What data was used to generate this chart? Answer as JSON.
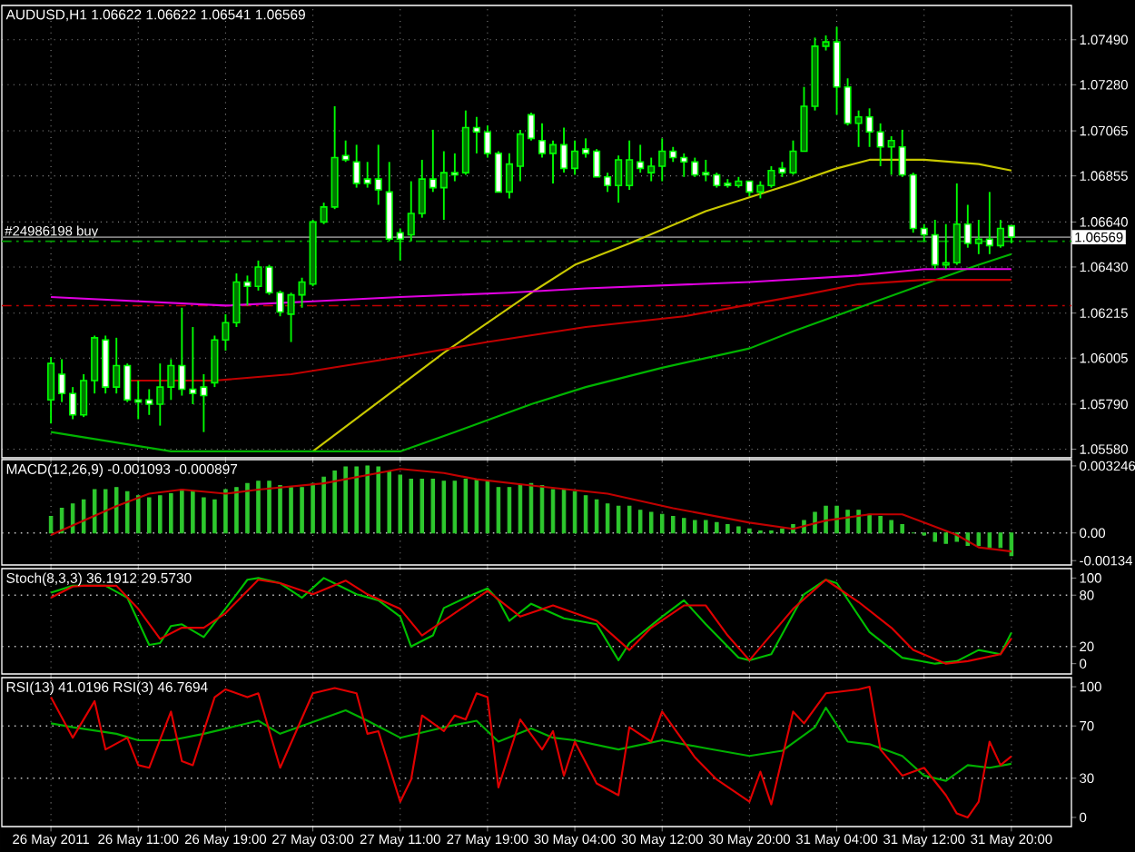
{
  "chart_data": [
    {
      "type": "candlestick",
      "title": "AUDUSD,H1 1.06622 1.06622 1.06541 1.06569",
      "categories": [
        null,
        null,
        null,
        null,
        null,
        null,
        null,
        null,
        null,
        null,
        null,
        null,
        null,
        null,
        null,
        null,
        null,
        null,
        null,
        null,
        null,
        null,
        null,
        null,
        null,
        null,
        null,
        null,
        null,
        null,
        null,
        null,
        null,
        null,
        null,
        null,
        null,
        null,
        null,
        null,
        null,
        null,
        null,
        null,
        null,
        null,
        null,
        null,
        null,
        null,
        null,
        null,
        null,
        null,
        null,
        null,
        null,
        null,
        null,
        null,
        null,
        null,
        null,
        null,
        null,
        null,
        null,
        null,
        null,
        null,
        null,
        null,
        null,
        null,
        null,
        null,
        null,
        null,
        null,
        null,
        null,
        null,
        null,
        null,
        null,
        null,
        null,
        null,
        null,
        null,
        null,
        null,
        null,
        null,
        null,
        null,
        null,
        null
      ],
      "ohlc": [
        null,
        null,
        null,
        null,
        [
          1.0581,
          1.0601,
          1.057,
          1.0598
        ],
        [
          1.0593,
          1.06,
          1.058,
          1.0584
        ],
        [
          1.0584,
          1.0587,
          1.0572,
          1.0574
        ],
        [
          1.0574,
          1.0593,
          1.0573,
          1.059
        ],
        [
          1.059,
          1.0611,
          1.0584,
          1.061
        ],
        [
          1.0609,
          1.0611,
          1.0584,
          1.0587
        ],
        [
          1.0587,
          1.061,
          1.0584,
          1.0597
        ],
        [
          1.0597,
          1.0598,
          1.058,
          1.0581
        ],
        [
          1.0581,
          1.059,
          1.0572,
          1.058
        ],
        [
          1.0581,
          1.0586,
          1.0574,
          1.0579
        ],
        [
          1.0579,
          1.0598,
          1.0569,
          1.0587
        ],
        [
          1.0587,
          1.06,
          1.0581,
          1.0597
        ],
        [
          1.0597,
          1.0624,
          1.0583,
          1.0586
        ],
        [
          1.0586,
          1.0615,
          1.0579,
          1.0584
        ],
        [
          1.0587,
          1.0593,
          1.0566,
          1.0583
        ],
        [
          1.0589,
          1.0611,
          1.0587,
          1.0609
        ],
        [
          1.0609,
          1.0621,
          1.0604,
          1.0617
        ],
        [
          1.0617,
          1.064,
          1.0615,
          1.0636
        ],
        [
          1.0636,
          1.0639,
          1.0625,
          1.0634
        ],
        [
          1.0634,
          1.0646,
          1.0632,
          1.0643
        ],
        [
          1.0643,
          1.0644,
          1.063,
          1.0631
        ],
        [
          1.0631,
          1.0632,
          1.062,
          1.0622
        ],
        [
          1.0621,
          1.0631,
          1.0608,
          1.063
        ],
        [
          1.063,
          1.0638,
          1.0624,
          1.0636
        ],
        [
          1.0635,
          1.0665,
          1.0634,
          1.0664
        ],
        [
          1.0664,
          1.0673,
          1.0663,
          1.0671
        ],
        [
          1.0671,
          1.0718,
          1.067,
          1.0694
        ],
        [
          1.0695,
          1.0702,
          1.0692,
          1.0693
        ],
        [
          1.0692,
          1.07,
          1.068,
          1.0682
        ],
        [
          1.0684,
          1.0692,
          1.068,
          1.0682
        ],
        [
          1.0684,
          1.07,
          1.0672,
          1.0679
        ],
        [
          1.0678,
          1.0692,
          1.0655,
          1.0656
        ],
        [
          1.0659,
          1.0661,
          1.0646,
          1.0656
        ],
        [
          1.0658,
          1.0683,
          1.0655,
          1.0668
        ],
        [
          1.0668,
          1.0693,
          1.0666,
          1.0684
        ],
        [
          1.0684,
          1.0707,
          1.0678,
          1.068
        ],
        [
          1.068,
          1.0697,
          1.0665,
          1.0687
        ],
        [
          1.0687,
          1.0696,
          1.0683,
          1.0686
        ],
        [
          1.0687,
          1.0716,
          1.0686,
          1.0708
        ],
        [
          1.0708,
          1.0713,
          1.0696,
          1.0706
        ],
        [
          1.0706,
          1.0709,
          1.0694,
          1.0696
        ],
        [
          1.0696,
          1.0697,
          1.0678,
          1.0678
        ],
        [
          1.0678,
          1.0696,
          1.0675,
          1.0691
        ],
        [
          1.069,
          1.0707,
          1.0683,
          1.0705
        ],
        [
          1.0714,
          1.0715,
          1.0702,
          1.0703
        ],
        [
          1.0702,
          1.071,
          1.0694,
          1.0696
        ],
        [
          1.0696,
          1.0702,
          1.0682,
          1.07
        ],
        [
          1.07,
          1.0708,
          1.0687,
          1.0689
        ],
        [
          1.0689,
          1.0702,
          1.0686,
          1.0697
        ],
        [
          1.0698,
          1.0703,
          1.0694,
          1.0696
        ],
        [
          1.0697,
          1.0698,
          1.0685,
          1.0685
        ],
        [
          1.0685,
          1.0687,
          1.0678,
          1.0681
        ],
        [
          1.0681,
          1.0695,
          1.0673,
          1.0693
        ],
        [
          1.0681,
          1.0702,
          1.0679,
          1.0693
        ],
        [
          1.0692,
          1.07,
          1.0687,
          1.0689
        ],
        [
          1.0687,
          1.0694,
          1.0683,
          1.069
        ],
        [
          1.069,
          1.0703,
          1.0683,
          1.0697
        ],
        [
          1.0697,
          1.0699,
          1.0692,
          1.0694
        ],
        [
          1.0694,
          1.0696,
          1.0685,
          1.0692
        ],
        [
          1.0692,
          1.0694,
          1.0685,
          1.0686
        ],
        [
          1.0687,
          1.0693,
          1.0683,
          1.0686
        ],
        [
          1.0686,
          1.0687,
          1.068,
          1.0681
        ],
        [
          1.0682,
          1.0684,
          1.068,
          1.0681
        ],
        [
          1.0681,
          1.0685,
          1.068,
          1.0683
        ],
        [
          1.0683,
          1.0683,
          1.0676,
          1.0678
        ],
        [
          1.0678,
          1.0683,
          1.0675,
          1.0681
        ],
        [
          1.0681,
          1.069,
          1.068,
          1.0688
        ],
        [
          1.0689,
          1.0692,
          1.0685,
          1.0687
        ],
        [
          1.0687,
          1.0702,
          1.0686,
          1.0697
        ],
        [
          1.0697,
          1.0727,
          1.0697,
          1.0718
        ],
        [
          1.0718,
          1.075,
          1.0716,
          1.0746
        ],
        [
          1.0746,
          1.0751,
          1.0744,
          1.0748
        ],
        [
          1.0748,
          1.0755,
          1.0714,
          1.0727
        ],
        [
          1.0727,
          1.0731,
          1.0709,
          1.071
        ],
        [
          1.071,
          1.0716,
          1.0699,
          1.0713
        ],
        [
          1.0713,
          1.0717,
          1.0699,
          1.0706
        ],
        [
          1.0706,
          1.071,
          1.069,
          1.0699
        ],
        [
          1.0699,
          1.0704,
          1.0686,
          1.0702
        ],
        [
          1.0699,
          1.0707,
          1.0685,
          1.0686
        ],
        [
          1.0686,
          1.0687,
          1.0659,
          1.0661
        ],
        [
          1.0661,
          1.0663,
          1.0655,
          1.0658
        ],
        [
          1.0658,
          1.0665,
          1.0642,
          1.0644
        ],
        [
          1.0644,
          1.0663,
          1.0642,
          1.0645
        ],
        [
          1.0645,
          1.0682,
          1.0644,
          1.0663
        ],
        [
          1.0663,
          1.0672,
          1.0652,
          1.0654
        ],
        [
          1.0654,
          1.0665,
          1.0649,
          1.0656
        ],
        [
          1.0656,
          1.0678,
          1.0649,
          1.0653
        ],
        [
          1.0653,
          1.0665,
          1.0652,
          1.0661
        ],
        [
          1.06622,
          1.06622,
          1.06541,
          1.06569
        ],
        null,
        null,
        null,
        null,
        null
      ],
      "series": [
        {
          "type": "line",
          "color": "#c8c800",
          "values": [
            null,
            null,
            null,
            null,
            null,
            null,
            null,
            null,
            null,
            null,
            null,
            null,
            null,
            null,
            null,
            null,
            null,
            null,
            null,
            null,
            null,
            null,
            null,
            null,
            null,
            null,
            null,
            null,
            1.0557,
            null,
            null,
            null,
            null,
            null,
            1.058,
            null,
            null,
            null,
            null,
            null,
            1.0603,
            null,
            null,
            null,
            null,
            null,
            null,
            null,
            1.0631,
            null,
            null,
            null,
            1.0644,
            null,
            null,
            null,
            null,
            1.0654,
            null,
            null,
            null,
            null,
            null,
            null,
            1.0669,
            null,
            null,
            null,
            null,
            null,
            null,
            null,
            1.0682,
            null,
            null,
            null,
            1.0689,
            null,
            null,
            1.0693,
            null,
            null,
            null,
            null,
            1.0693,
            null,
            null,
            null,
            null,
            1.0691,
            null,
            null,
            1.0688,
            null,
            null,
            null,
            null,
            null
          ]
        },
        {
          "type": "line",
          "color": "#00b400",
          "values": [
            null,
            null,
            null,
            null,
            1.0566,
            null,
            null,
            null,
            null,
            null,
            null,
            null,
            null,
            null,
            null,
            1.0557,
            null,
            null,
            null,
            null,
            null,
            null,
            null,
            null,
            null,
            null,
            null,
            null,
            null,
            null,
            null,
            null,
            null,
            null,
            null,
            null,
            1.0557,
            null,
            null,
            null,
            null,
            1.0566,
            null,
            null,
            null,
            null,
            null,
            null,
            1.0579,
            null,
            null,
            null,
            null,
            1.0587,
            null,
            null,
            null,
            null,
            null,
            null,
            1.0596,
            null,
            null,
            null,
            null,
            null,
            null,
            null,
            1.0605,
            null,
            null,
            null,
            1.0613,
            null,
            null,
            null,
            null,
            null,
            1.0624,
            null,
            null,
            null,
            null,
            null,
            1.0635,
            null,
            null,
            null,
            null,
            1.0644,
            null,
            null,
            1.0649,
            null,
            null,
            null,
            null,
            null
          ]
        },
        {
          "type": "line",
          "color": "#c00000",
          "values": [
            null,
            null,
            null,
            null,
            null,
            null,
            null,
            null,
            null,
            null,
            null,
            1.059,
            null,
            null,
            null,
            null,
            null,
            null,
            null,
            1.059,
            null,
            null,
            null,
            null,
            null,
            null,
            1.0593,
            null,
            null,
            null,
            null,
            null,
            null,
            null,
            null,
            null,
            1.0601,
            null,
            null,
            null,
            null,
            null,
            null,
            null,
            1.0608,
            null,
            null,
            null,
            null,
            null,
            null,
            null,
            null,
            1.0615,
            null,
            null,
            null,
            null,
            null,
            null,
            null,
            null,
            1.062,
            null,
            null,
            null,
            null,
            null,
            null,
            null,
            null,
            null,
            null,
            1.063,
            null,
            null,
            null,
            null,
            1.0635,
            null,
            null,
            null,
            null,
            null,
            1.0637,
            null,
            null,
            null,
            null,
            null,
            null,
            null,
            1.0637,
            null,
            null,
            null,
            null,
            null
          ]
        },
        {
          "type": "line",
          "color": "#e000e0",
          "values": [
            null,
            null,
            null,
            null,
            1.0629,
            null,
            null,
            null,
            null,
            null,
            null,
            null,
            null,
            null,
            null,
            null,
            null,
            null,
            null,
            null,
            1.0625,
            null,
            null,
            null,
            null,
            null,
            null,
            null,
            1.0627,
            null,
            null,
            null,
            null,
            null,
            null,
            null,
            1.0629,
            null,
            null,
            null,
            null,
            null,
            null,
            null,
            null,
            null,
            1.0631,
            null,
            null,
            null,
            null,
            null,
            null,
            1.0633,
            null,
            null,
            null,
            null,
            null,
            null,
            null,
            null,
            null,
            null,
            null,
            null,
            null,
            null,
            1.0636,
            null,
            null,
            null,
            null,
            null,
            null,
            null,
            null,
            null,
            1.0639,
            null,
            null,
            null,
            null,
            null,
            1.0642,
            null,
            null,
            null,
            null,
            null,
            null,
            null,
            1.0642,
            null,
            null,
            null,
            null,
            null
          ]
        }
      ],
      "ylim": [
        1.0554,
        1.0765
      ],
      "yticks": [
        {
          "value": 1.0749,
          "label": "1.07490"
        },
        {
          "value": 1.0728,
          "label": "1.07280"
        },
        {
          "value": 1.07065,
          "label": "1.07065"
        },
        {
          "value": 1.06855,
          "label": "1.06855"
        },
        {
          "value": 1.0664,
          "label": "1.06640"
        },
        {
          "value": 1.0643,
          "label": "1.06430"
        },
        {
          "value": 1.06215,
          "label": "1.06215"
        },
        {
          "value": 1.06005,
          "label": "1.06005"
        },
        {
          "value": 1.0579,
          "label": "1.05790"
        },
        {
          "value": 1.0558,
          "label": "1.05580"
        }
      ],
      "tick_labels": "y",
      "grid": true,
      "ref_lines": [
        {
          "axis": "y",
          "value": 1.0655,
          "label": "#24986198 buy",
          "color": "#00a000",
          "line_style": "dashed"
        },
        {
          "axis": "y",
          "value": 1.0625,
          "color": "#c00000",
          "line_style": "dashed"
        },
        {
          "axis": "y",
          "value": 1.06569,
          "label": "1.06569",
          "color": "#808080",
          "line_style": "solid"
        }
      ]
    },
    {
      "type": "bar",
      "title": "MACD(12,26,9) -0.001093 -0.000897",
      "categories": [
        null,
        null,
        null,
        null,
        null,
        null,
        null,
        null,
        null,
        null,
        null,
        null,
        null,
        null,
        null,
        null,
        null,
        null,
        null,
        null,
        null,
        null,
        null,
        null,
        null,
        null,
        null,
        null,
        null,
        null,
        null,
        null,
        null,
        null,
        null,
        null,
        null,
        null,
        null,
        null,
        null,
        null,
        null,
        null,
        null,
        null,
        null,
        null,
        null,
        null,
        null,
        null,
        null,
        null,
        null,
        null,
        null,
        null,
        null,
        null,
        null,
        null,
        null,
        null,
        null,
        null,
        null,
        null,
        null,
        null,
        null,
        null,
        null,
        null,
        null,
        null,
        null,
        null,
        null,
        null,
        null,
        null,
        null,
        null,
        null,
        null,
        null,
        null,
        null,
        null,
        null,
        null,
        null,
        null,
        null,
        null,
        null,
        null
      ],
      "series": [
        {
          "type": "bar",
          "color": "#2ec82e",
          "values": [
            null,
            null,
            null,
            null,
            0.0008,
            0.0012,
            0.0014,
            0.0016,
            0.0021,
            0.0021,
            0.0022,
            0.002,
            0.0018,
            0.0017,
            0.0018,
            0.0019,
            0.0021,
            0.002,
            0.0017,
            0.0016,
            0.0021,
            0.0022,
            0.0024,
            0.0025,
            0.0025,
            0.0023,
            0.0022,
            0.0022,
            0.0024,
            0.0027,
            0.003,
            0.0032,
            0.0032,
            0.003246,
            0.0032,
            0.003,
            0.0028,
            0.0026,
            0.0026,
            0.0026,
            0.0025,
            0.0025,
            0.0026,
            0.0026,
            0.0025,
            0.0022,
            0.0022,
            0.0023,
            0.0024,
            0.0023,
            0.0021,
            0.0021,
            0.002,
            0.0018,
            0.0016,
            0.0014,
            0.0013,
            0.0013,
            0.0011,
            0.001,
            0.0009,
            0.0008,
            0.0007,
            0.0006,
            0.0006,
            0.0005,
            0.0004,
            0.0003,
            0.0002,
            0.0001,
            0.0001,
            0.0002,
            0.0004,
            0.0006,
            0.001,
            0.0013,
            0.0013,
            0.0011,
            0.0011,
            0.0009,
            0.0008,
            0.0006,
            0.0004,
            0,
            -0.0001,
            -0.0004,
            -0.0005,
            -0.0004,
            -0.0006,
            -0.0006,
            -0.0007,
            -0.0007,
            -0.001093,
            null,
            null,
            null,
            null,
            null
          ]
        },
        {
          "type": "line",
          "color": "#c00000",
          "values": [
            null,
            null,
            null,
            null,
            -0.0001,
            null,
            null,
            0.0006,
            null,
            null,
            0.0013,
            null,
            null,
            0.0019,
            null,
            null,
            0.0021,
            null,
            null,
            null,
            0.0019,
            null,
            null,
            0.0021,
            null,
            null,
            null,
            null,
            null,
            0.0024,
            null,
            null,
            null,
            null,
            0.0029,
            null,
            0.0031,
            null,
            null,
            null,
            0.0029,
            null,
            null,
            0.0026,
            null,
            null,
            null,
            null,
            0.0023,
            null,
            null,
            null,
            null,
            null,
            null,
            0.0019,
            null,
            null,
            null,
            null,
            null,
            0.0012,
            null,
            null,
            null,
            null,
            null,
            null,
            0.0005,
            null,
            null,
            null,
            0.0002,
            null,
            null,
            0.0006,
            null,
            null,
            null,
            0.0009,
            null,
            null,
            0.0009,
            null,
            0.0005,
            null,
            null,
            -0.0001,
            null,
            -0.0007,
            null,
            null,
            -0.000897,
            null,
            null,
            null,
            null,
            null
          ]
        }
      ],
      "ylim": [
        -0.00155,
        0.00355
      ],
      "yticks": [
        {
          "value": 0.003246,
          "label": "0.003246"
        },
        {
          "value": 0,
          "label": "0.00"
        },
        {
          "value": -0.00134,
          "label": "-0.00134"
        }
      ],
      "tick_labels": "y",
      "grid": "x",
      "ref_lines": [
        {
          "axis": "y",
          "value": 0,
          "color": "#c0c0c0",
          "line_style": "dotted"
        }
      ]
    },
    {
      "type": "line",
      "title": "Stoch(8,3,3) 36.1912 29.5730",
      "categories": [
        null,
        null,
        null,
        null,
        null,
        null,
        null,
        null,
        null,
        null,
        null,
        null,
        null,
        null,
        null,
        null,
        null,
        null,
        null,
        null,
        null,
        null,
        null,
        null,
        null,
        null,
        null,
        null,
        null,
        null,
        null,
        null,
        null,
        null,
        null,
        null,
        null,
        null,
        null,
        null,
        null,
        null,
        null,
        null,
        null,
        null,
        null,
        null,
        null,
        null,
        null,
        null,
        null,
        null,
        null,
        null,
        null,
        null,
        null,
        null,
        null,
        null,
        null,
        null,
        null,
        null,
        null,
        null,
        null,
        null,
        null,
        null,
        null,
        null,
        null,
        null,
        null,
        null,
        null,
        null,
        null,
        null,
        null,
        null,
        null,
        null,
        null,
        null,
        null,
        null,
        null,
        null,
        null,
        null,
        null,
        null,
        null,
        null
      ],
      "series": [
        {
          "color": "#00c000",
          "values": [
            null,
            null,
            null,
            null,
            83,
            null,
            91,
            null,
            null,
            91,
            null,
            77,
            null,
            22,
            24,
            44,
            46,
            null,
            31,
            null,
            null,
            81,
            98,
            100,
            null,
            94,
            null,
            77,
            null,
            100,
            null,
            null,
            81,
            null,
            74,
            null,
            55,
            20,
            null,
            33,
            65,
            null,
            77,
            null,
            88,
            74,
            50,
            null,
            70,
            null,
            null,
            53,
            null,
            null,
            46,
            null,
            4,
            24,
            null,
            null,
            55,
            null,
            74,
            null,
            46,
            null,
            null,
            7,
            4,
            null,
            11,
            null,
            null,
            81,
            null,
            98,
            94,
            null,
            null,
            37,
            null,
            null,
            7,
            null,
            null,
            0,
            null,
            3,
            null,
            16,
            null,
            11,
            36.1912,
            null,
            null,
            null,
            null,
            null
          ]
        },
        {
          "color": "#e00000",
          "values": [
            null,
            null,
            null,
            null,
            77,
            null,
            90,
            91,
            null,
            null,
            91,
            null,
            64,
            null,
            29,
            null,
            42,
            null,
            42,
            null,
            59,
            null,
            null,
            98,
            null,
            94,
            null,
            null,
            81,
            null,
            null,
            97,
            null,
            81,
            null,
            null,
            64,
            null,
            33,
            null,
            null,
            59,
            null,
            null,
            85,
            null,
            null,
            55,
            null,
            null,
            68,
            null,
            null,
            null,
            50,
            null,
            null,
            16,
            null,
            42,
            null,
            null,
            68,
            null,
            68,
            null,
            33,
            null,
            4,
            null,
            null,
            null,
            64,
            null,
            null,
            98,
            null,
            null,
            72,
            null,
            null,
            42,
            null,
            16,
            null,
            null,
            0,
            null,
            3,
            null,
            null,
            11,
            29.573,
            null,
            null,
            null,
            null,
            null
          ]
        }
      ],
      "ylim": [
        -12,
        111
      ],
      "yticks": [
        0,
        20,
        80,
        100
      ],
      "tick_labels": "y",
      "grid": "x",
      "ref_lines": [
        {
          "axis": "y",
          "value": 80,
          "color": "#c0c0c0",
          "line_style": "dotted"
        },
        {
          "axis": "y",
          "value": 20,
          "color": "#c0c0c0",
          "line_style": "dotted"
        }
      ]
    },
    {
      "type": "line",
      "title": "RSI(13) 41.0196 RSI(3) 46.7694",
      "categories": [
        null,
        null,
        null,
        null,
        "26 May 2011",
        null,
        null,
        null,
        null,
        null,
        null,
        null,
        "26 May 11:00",
        null,
        null,
        null,
        null,
        null,
        null,
        null,
        "26 May 19:00",
        null,
        null,
        null,
        null,
        null,
        null,
        null,
        "27 May 03:00",
        null,
        null,
        null,
        null,
        null,
        null,
        null,
        "27 May 11:00",
        null,
        null,
        null,
        null,
        null,
        null,
        null,
        "27 May 19:00",
        null,
        null,
        null,
        null,
        null,
        null,
        null,
        "30 May 04:00",
        null,
        null,
        null,
        null,
        null,
        null,
        null,
        "30 May 12:00",
        null,
        null,
        null,
        null,
        null,
        null,
        null,
        "30 May 20:00",
        null,
        null,
        null,
        null,
        null,
        null,
        null,
        "31 May 04:00",
        null,
        null,
        null,
        null,
        null,
        null,
        null,
        "31 May 12:00",
        null,
        null,
        null,
        null,
        null,
        null,
        null,
        "31 May 20:00",
        null,
        null,
        null,
        null,
        null
      ],
      "series": [
        {
          "color": "#00b000",
          "values": [
            null,
            null,
            null,
            null,
            72,
            null,
            69,
            null,
            null,
            null,
            64,
            null,
            59,
            null,
            null,
            59,
            null,
            null,
            64,
            null,
            null,
            null,
            null,
            74,
            null,
            64,
            null,
            null,
            null,
            null,
            null,
            82,
            null,
            74,
            null,
            null,
            61,
            null,
            null,
            null,
            69,
            null,
            null,
            74,
            null,
            58,
            null,
            null,
            68,
            null,
            61,
            null,
            59,
            null,
            null,
            null,
            52,
            null,
            null,
            null,
            59,
            null,
            null,
            null,
            53,
            null,
            null,
            null,
            47,
            null,
            null,
            51,
            null,
            null,
            69,
            84,
            null,
            58,
            null,
            56,
            null,
            null,
            47,
            null,
            32,
            null,
            28,
            null,
            40,
            null,
            38,
            null,
            41.0196,
            null,
            null,
            null,
            null,
            null
          ]
        },
        {
          "color": "#e00000",
          "values": [
            null,
            null,
            null,
            null,
            92,
            null,
            61,
            null,
            89,
            52,
            null,
            61,
            40,
            38,
            null,
            81,
            43,
            40,
            null,
            92,
            98,
            null,
            92,
            95,
            null,
            38,
            null,
            null,
            95,
            null,
            99,
            null,
            95,
            64,
            66,
            null,
            12,
            29,
            78,
            null,
            66,
            78,
            75,
            95,
            92,
            23,
            null,
            75,
            null,
            52,
            66,
            32,
            58,
            null,
            26,
            null,
            17,
            69,
            null,
            58,
            81,
            null,
            null,
            46,
            null,
            29,
            null,
            null,
            12,
            35,
            10,
            null,
            81,
            72,
            null,
            95,
            null,
            null,
            98,
            100,
            52,
            null,
            32,
            null,
            38,
            null,
            17,
            3,
            0,
            12,
            58,
            40,
            46.7694,
            null,
            null,
            null,
            null,
            null
          ]
        }
      ],
      "ylim": [
        -7,
        107
      ],
      "yticks": [
        0,
        30,
        70,
        100
      ],
      "grid": "x",
      "ref_lines": [
        {
          "axis": "y",
          "value": 70,
          "color": "#c0c0c0",
          "line_style": "dotted"
        },
        {
          "axis": "y",
          "value": 30,
          "color": "#c0c0c0",
          "line_style": "dotted"
        }
      ]
    }
  ]
}
